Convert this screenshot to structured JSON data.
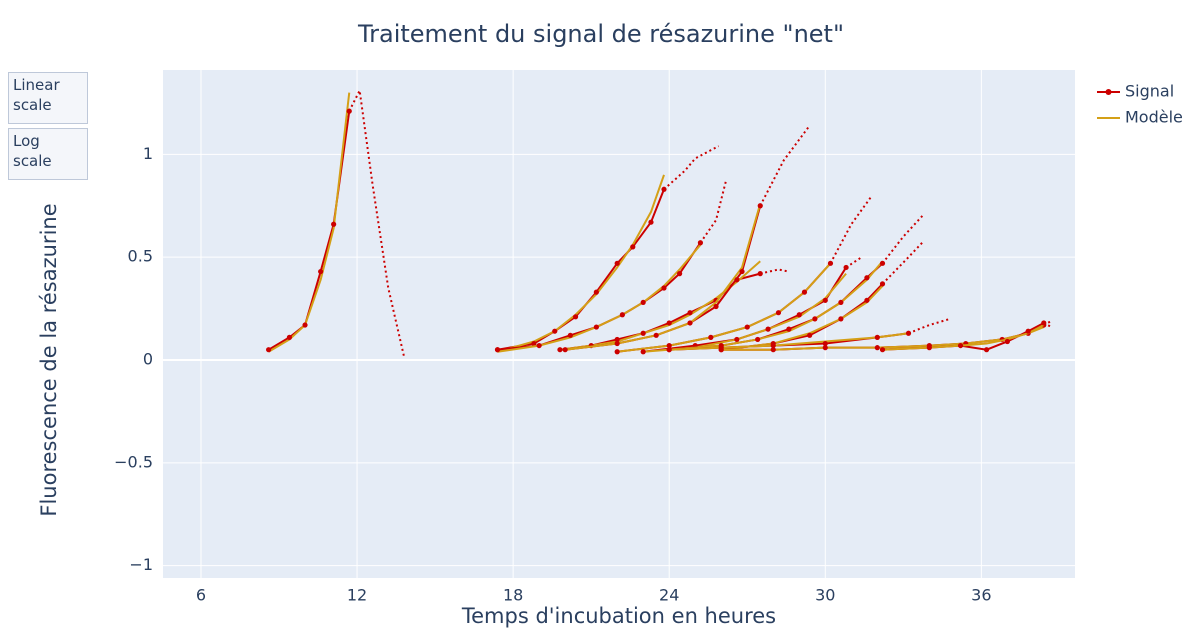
{
  "chart_data": {
    "type": "line",
    "title": "Traitement du signal de résazurine \"net\"",
    "xlabel": "Temps d'incubation en heures",
    "ylabel": "Fluorescence de la résazurine",
    "buttons": [
      "Linear scale",
      "Log scale"
    ],
    "series": [
      {
        "name": "Signal",
        "color": "#cc0000"
      },
      {
        "name": "Modèle",
        "color": "#d4a017"
      }
    ],
    "xlim": [
      4.54,
      39.6
    ],
    "ylim": [
      -1.06,
      1.41
    ],
    "xticks": [
      6,
      12,
      18,
      24,
      30,
      36
    ],
    "yticks": [
      {
        "value": -1,
        "label": "−1"
      },
      {
        "value": -0.5,
        "label": "−0.5"
      },
      0,
      0.5,
      1
    ],
    "grid": true,
    "curves": [
      {
        "x": [
          8.6,
          9.4,
          10,
          10.6,
          11.1,
          11.7
        ],
        "signal": [
          0.05,
          0.11,
          0.17,
          0.43,
          0.66,
          1.21
        ],
        "model": [
          0.04,
          0.1,
          0.17,
          0.39,
          0.64,
          1.3
        ],
        "ext_x": [
          11.7,
          12.1,
          12.6,
          13.2,
          13.8
        ],
        "ext": [
          1.21,
          1.31,
          0.85,
          0.35,
          0.02
        ]
      },
      {
        "x": [
          17.4,
          18.8,
          19.6,
          20.4,
          21.2,
          22,
          22.6,
          23.3,
          23.8
        ],
        "signal": [
          0.05,
          0.08,
          0.14,
          0.21,
          0.33,
          0.47,
          0.55,
          0.67,
          0.83
        ],
        "model": [
          0.04,
          0.09,
          0.14,
          0.22,
          0.32,
          0.45,
          0.56,
          0.72,
          0.9
        ],
        "ext_x": [
          23.8,
          24.6,
          25,
          25.9
        ],
        "ext": [
          0.83,
          0.92,
          0.98,
          1.04
        ]
      },
      {
        "x": [
          17.4,
          19,
          20.2,
          21.2,
          22.2,
          23,
          23.8,
          24.4,
          25.2
        ],
        "signal": [
          0.05,
          0.07,
          0.12,
          0.16,
          0.22,
          0.28,
          0.35,
          0.42,
          0.57
        ],
        "model": [
          0.04,
          0.07,
          0.11,
          0.16,
          0.22,
          0.28,
          0.36,
          0.44,
          0.56
        ],
        "ext_x": [
          25.2,
          25.8,
          26.2
        ],
        "ext": [
          0.57,
          0.68,
          0.88
        ]
      },
      {
        "x": [
          19.8,
          21,
          22,
          23,
          24,
          24.8,
          25.8,
          26.6,
          27.5
        ],
        "signal": [
          0.05,
          0.07,
          0.1,
          0.13,
          0.18,
          0.23,
          0.29,
          0.39,
          0.42
        ],
        "model": [
          0.05,
          0.07,
          0.09,
          0.13,
          0.17,
          0.22,
          0.3,
          0.38,
          0.48
        ],
        "ext_x": [
          27.5,
          28.2,
          28.6
        ],
        "ext": [
          0.42,
          0.44,
          0.43
        ]
      },
      {
        "x": [
          20,
          22,
          23.5,
          24.8,
          25.8,
          26.8,
          27.5
        ],
        "signal": [
          0.05,
          0.08,
          0.12,
          0.18,
          0.26,
          0.43,
          0.75
        ],
        "model": [
          0.05,
          0.08,
          0.12,
          0.18,
          0.28,
          0.45,
          0.76
        ],
        "ext_x": [
          27.5,
          28.4,
          29.4
        ],
        "ext": [
          0.75,
          0.97,
          1.14
        ]
      },
      {
        "x": [
          22,
          24,
          25.6,
          27,
          28.2,
          29.2,
          30.2
        ],
        "signal": [
          0.04,
          0.07,
          0.11,
          0.16,
          0.23,
          0.33,
          0.47
        ],
        "model": [
          0.04,
          0.07,
          0.11,
          0.16,
          0.23,
          0.33,
          0.47
        ],
        "ext_x": [
          30.2,
          31,
          31.8
        ],
        "ext": [
          0.47,
          0.66,
          0.8
        ]
      },
      {
        "x": [
          23,
          25,
          26.6,
          27.8,
          29,
          30,
          30.8
        ],
        "signal": [
          0.04,
          0.07,
          0.1,
          0.15,
          0.22,
          0.29,
          0.45
        ],
        "model": [
          0.04,
          0.06,
          0.1,
          0.15,
          0.21,
          0.3,
          0.42
        ],
        "ext_x": [
          30.8,
          31.4
        ],
        "ext": [
          0.45,
          0.5
        ]
      },
      {
        "x": [
          24,
          26,
          27.4,
          28.6,
          29.6,
          30.6,
          31.6,
          32.2
        ],
        "signal": [
          0.05,
          0.07,
          0.1,
          0.15,
          0.2,
          0.28,
          0.4,
          0.47
        ],
        "model": [
          0.05,
          0.07,
          0.1,
          0.14,
          0.2,
          0.28,
          0.39,
          0.48
        ],
        "ext_x": [
          32.2,
          33,
          33.8
        ],
        "ext": [
          0.47,
          0.6,
          0.71
        ]
      },
      {
        "x": [
          26,
          28,
          29.4,
          30.6,
          31.6,
          32.2
        ],
        "signal": [
          0.05,
          0.08,
          0.12,
          0.2,
          0.29,
          0.37
        ],
        "model": [
          0.05,
          0.08,
          0.13,
          0.2,
          0.28,
          0.36
        ],
        "ext_x": [
          32.2,
          33.2,
          33.8
        ],
        "ext": [
          0.37,
          0.5,
          0.58
        ]
      },
      {
        "x": [
          24,
          26,
          28,
          30,
          32,
          33.2
        ],
        "signal": [
          0.05,
          0.06,
          0.07,
          0.08,
          0.11,
          0.13
        ],
        "model": [
          0.05,
          0.06,
          0.07,
          0.09,
          0.11,
          0.13
        ],
        "ext_x": [
          33.2,
          34,
          34.8
        ],
        "ext": [
          0.13,
          0.17,
          0.2
        ]
      },
      {
        "x": [
          26,
          28,
          30,
          32,
          34,
          35.4,
          36.8,
          37.8,
          38.4
        ],
        "signal": [
          0.05,
          0.05,
          0.06,
          0.06,
          0.07,
          0.08,
          0.1,
          0.13,
          0.17
        ],
        "model": [
          0.05,
          0.05,
          0.06,
          0.06,
          0.07,
          0.08,
          0.1,
          0.13,
          0.16
        ],
        "ext_x": [
          38.4,
          38.7
        ],
        "ext": [
          0.17,
          0.19
        ]
      },
      {
        "x": [
          32.2,
          34,
          35.2,
          36.2,
          37,
          37.8,
          38.4
        ],
        "signal": [
          0.05,
          0.06,
          0.07,
          0.05,
          0.09,
          0.14,
          0.18
        ],
        "model": [
          0.05,
          0.06,
          0.07,
          0.08,
          0.1,
          0.13,
          0.17
        ],
        "ext_x": [
          38.4,
          38.7
        ],
        "ext": [
          0.18,
          0.16
        ]
      }
    ]
  }
}
